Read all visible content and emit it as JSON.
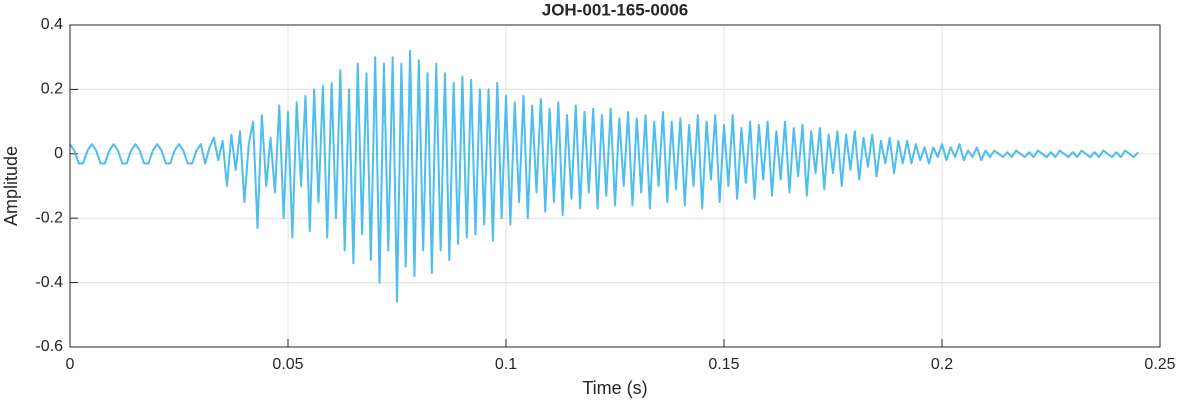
{
  "chart_data": {
    "type": "line",
    "title": "JOH-001-165-0006",
    "xlabel": "Time (s)",
    "ylabel": "Amplitude",
    "color": "#4dbeee",
    "grid": true,
    "xlim": [
      0,
      0.25
    ],
    "xticks": [
      0,
      0.05,
      0.1,
      0.15,
      0.2,
      0.25
    ],
    "ylim": [
      -0.6,
      0.4
    ],
    "yticks": [
      -0.6,
      -0.4,
      -0.2,
      0,
      0.2,
      0.4
    ],
    "x": [
      0,
      0.001,
      0.002,
      0.003,
      0.004,
      0.005,
      0.006,
      0.007,
      0.008,
      0.009,
      0.01,
      0.011,
      0.012,
      0.013,
      0.014,
      0.015,
      0.016,
      0.017,
      0.018,
      0.019,
      0.02,
      0.021,
      0.022,
      0.023,
      0.024,
      0.025,
      0.026,
      0.027,
      0.028,
      0.029,
      0.03,
      0.031,
      0.032,
      0.033,
      0.034,
      0.035,
      0.036,
      0.037,
      0.038,
      0.039,
      0.04,
      0.041,
      0.042,
      0.043,
      0.044,
      0.045,
      0.046,
      0.047,
      0.048,
      0.049,
      0.05,
      0.051,
      0.052,
      0.053,
      0.054,
      0.055,
      0.056,
      0.057,
      0.058,
      0.059,
      0.06,
      0.061,
      0.062,
      0.063,
      0.064,
      0.065,
      0.066,
      0.067,
      0.068,
      0.069,
      0.07,
      0.071,
      0.072,
      0.073,
      0.074,
      0.075,
      0.076,
      0.077,
      0.078,
      0.079,
      0.08,
      0.081,
      0.082,
      0.083,
      0.084,
      0.085,
      0.086,
      0.087,
      0.088,
      0.089,
      0.09,
      0.091,
      0.092,
      0.093,
      0.094,
      0.095,
      0.096,
      0.097,
      0.098,
      0.099,
      0.1,
      0.101,
      0.102,
      0.103,
      0.104,
      0.105,
      0.106,
      0.107,
      0.108,
      0.109,
      0.11,
      0.111,
      0.112,
      0.113,
      0.114,
      0.115,
      0.116,
      0.117,
      0.118,
      0.119,
      0.12,
      0.121,
      0.122,
      0.123,
      0.124,
      0.125,
      0.126,
      0.127,
      0.128,
      0.129,
      0.13,
      0.131,
      0.132,
      0.133,
      0.134,
      0.135,
      0.136,
      0.137,
      0.138,
      0.139,
      0.14,
      0.141,
      0.142,
      0.143,
      0.144,
      0.145,
      0.146,
      0.147,
      0.148,
      0.149,
      0.15,
      0.151,
      0.152,
      0.153,
      0.154,
      0.155,
      0.156,
      0.157,
      0.158,
      0.159,
      0.16,
      0.161,
      0.162,
      0.163,
      0.164,
      0.165,
      0.166,
      0.167,
      0.168,
      0.169,
      0.17,
      0.171,
      0.172,
      0.173,
      0.174,
      0.175,
      0.176,
      0.177,
      0.178,
      0.179,
      0.18,
      0.181,
      0.182,
      0.183,
      0.184,
      0.185,
      0.186,
      0.187,
      0.188,
      0.189,
      0.19,
      0.191,
      0.192,
      0.193,
      0.194,
      0.195,
      0.196,
      0.197,
      0.198,
      0.199,
      0.2,
      0.201,
      0.202,
      0.203,
      0.204,
      0.205,
      0.206,
      0.207,
      0.208,
      0.209,
      0.21,
      0.211,
      0.212,
      0.213,
      0.214,
      0.215,
      0.216,
      0.217,
      0.218,
      0.219,
      0.22,
      0.221,
      0.222,
      0.223,
      0.224,
      0.225,
      0.226,
      0.227,
      0.228,
      0.229,
      0.23,
      0.231,
      0.232,
      0.233,
      0.234,
      0.235,
      0.236,
      0.237,
      0.238,
      0.239,
      0.24,
      0.241,
      0.242,
      0.243,
      0.244,
      0.245
    ],
    "values": [
      0.03,
      0.01,
      -0.03,
      -0.03,
      0.01,
      0.03,
      0.01,
      -0.03,
      -0.03,
      0.01,
      0.03,
      0.01,
      -0.03,
      -0.03,
      0.01,
      0.03,
      0.01,
      -0.03,
      -0.03,
      0.01,
      0.03,
      0.01,
      -0.03,
      -0.03,
      0.01,
      0.03,
      0.01,
      -0.03,
      -0.03,
      0.01,
      0.03,
      -0.03,
      0.02,
      0.05,
      -0.02,
      0.04,
      -0.1,
      0.06,
      -0.05,
      0.07,
      -0.15,
      0.03,
      0.1,
      -0.23,
      0.12,
      -0.1,
      0.05,
      -0.12,
      0.15,
      -0.2,
      0.13,
      -0.26,
      0.16,
      -0.1,
      0.18,
      -0.24,
      0.2,
      -0.15,
      0.21,
      -0.26,
      0.22,
      -0.2,
      0.26,
      -0.3,
      0.2,
      -0.34,
      0.28,
      -0.25,
      0.25,
      -0.33,
      0.3,
      -0.4,
      0.28,
      -0.3,
      0.3,
      -0.46,
      0.28,
      -0.35,
      0.32,
      -0.38,
      0.29,
      -0.3,
      0.25,
      -0.37,
      0.28,
      -0.3,
      0.25,
      -0.33,
      0.22,
      -0.28,
      0.24,
      -0.26,
      0.23,
      -0.25,
      0.2,
      -0.22,
      0.2,
      -0.27,
      0.22,
      -0.2,
      0.18,
      -0.22,
      0.16,
      -0.15,
      0.18,
      -0.2,
      0.15,
      -0.12,
      0.17,
      -0.18,
      0.14,
      -0.15,
      0.16,
      -0.19,
      0.12,
      -0.14,
      0.15,
      -0.17,
      0.13,
      -0.12,
      0.14,
      -0.17,
      0.12,
      -0.13,
      0.14,
      -0.16,
      0.11,
      -0.1,
      0.13,
      -0.16,
      0.11,
      -0.12,
      0.12,
      -0.17,
      0.1,
      -0.1,
      0.13,
      -0.15,
      0.1,
      -0.11,
      0.11,
      -0.16,
      0.09,
      -0.1,
      0.12,
      -0.17,
      0.1,
      -0.08,
      0.12,
      -0.15,
      0.09,
      -0.1,
      0.12,
      -0.14,
      0.08,
      -0.09,
      0.1,
      -0.14,
      0.09,
      -0.08,
      0.1,
      -0.13,
      0.07,
      -0.08,
      0.1,
      -0.12,
      0.08,
      -0.07,
      0.09,
      -0.13,
      0.07,
      -0.06,
      0.08,
      -0.11,
      0.06,
      -0.06,
      0.07,
      -0.1,
      0.06,
      -0.05,
      0.07,
      -0.08,
      0.05,
      -0.04,
      0.06,
      -0.07,
      0.04,
      -0.03,
      0.05,
      -0.06,
      0.04,
      -0.03,
      0.04,
      -0.03,
      0.03,
      -0.02,
      0.02,
      -0.03,
      0.02,
      -0.01,
      0.03,
      -0.02,
      0.02,
      -0.01,
      0.03,
      -0.02,
      0.01,
      -0.01,
      0.02,
      -0.02,
      0.01,
      -0.01,
      0.01,
      0,
      -0.01,
      0.005,
      -0.01,
      0.01,
      0,
      -0.01,
      0.005,
      -0.01,
      0.01,
      0,
      -0.01,
      0.005,
      -0.01,
      0.01,
      0,
      -0.01,
      0.005,
      -0.01,
      0.01,
      0,
      -0.01,
      0.005,
      -0.01,
      0.01,
      0,
      -0.01,
      0.005,
      -0.01,
      0.01,
      0,
      -0.01,
      0.005
    ]
  }
}
